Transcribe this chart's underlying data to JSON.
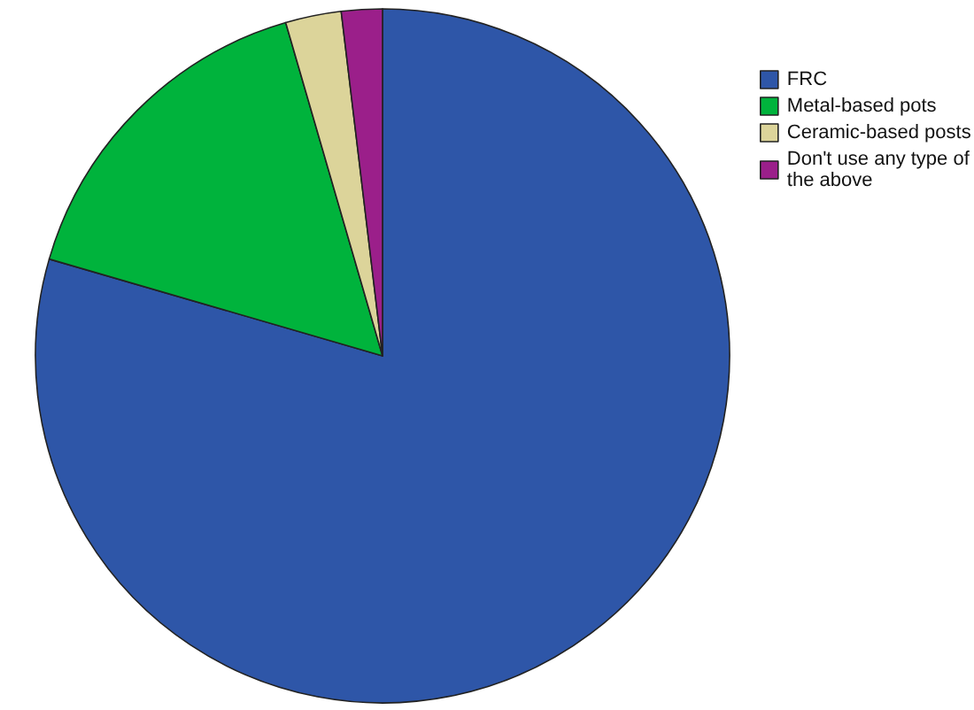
{
  "chart_data": {
    "type": "pie",
    "categories": [
      "FRC",
      "Metal-based pots",
      "Ceramic-based posts",
      "Don't use any type of the above"
    ],
    "values": [
      79.5,
      16.0,
      2.6,
      1.9
    ],
    "colors": [
      "#2e56a8",
      "#00b33c",
      "#dcd49a",
      "#9b1f8a"
    ],
    "legend": "top right"
  }
}
